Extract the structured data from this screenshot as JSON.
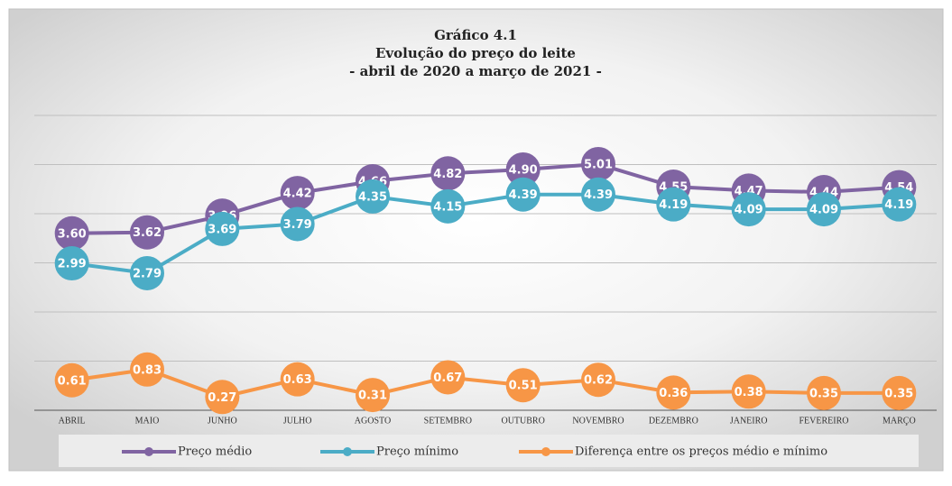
{
  "chart_data": {
    "type": "line",
    "title": [
      "Gráfico 4.1",
      "Evolução do preço do leite",
      "- abril de 2020 a março de 2021 -"
    ],
    "categories": [
      "ABRIL",
      "MAIO",
      "JUNHO",
      "JULHO",
      "AGOSTO",
      "SETEMBRO",
      "OUTUBRO",
      "NOVEMBRO",
      "DEZEMBRO",
      "JANEIRO",
      "FEVEREIRO",
      "MARÇO"
    ],
    "series": [
      {
        "name": "Preço médio",
        "color": "#8064a2",
        "values": [
          3.6,
          3.62,
          3.96,
          4.42,
          4.66,
          4.82,
          4.9,
          5.01,
          4.55,
          4.47,
          4.44,
          4.54
        ],
        "value_labels": [
          "3.60",
          "3.62",
          "3.96",
          "4.42",
          "4.66",
          "4.82",
          "4.90",
          "5.01",
          "4.55",
          "4.47",
          "4.44",
          "4.54"
        ]
      },
      {
        "name": "Preço mínimo",
        "color": "#4bacc6",
        "values": [
          2.99,
          2.79,
          3.69,
          3.79,
          4.35,
          4.15,
          4.39,
          4.39,
          4.19,
          4.09,
          4.09,
          4.19
        ],
        "value_labels": [
          "2.99",
          "2.79",
          "3.69",
          "3.79",
          "4.35",
          "4.15",
          "4.39",
          "4.39",
          "4.19",
          "4.09",
          "4.09",
          "4.19"
        ]
      },
      {
        "name": "Diferença entre os preços médio e mínimo",
        "color": "#f79646",
        "values": [
          0.61,
          0.83,
          0.27,
          0.63,
          0.31,
          0.67,
          0.51,
          0.62,
          0.36,
          0.38,
          0.35,
          0.35
        ],
        "value_labels": [
          "0.61",
          "0.83",
          "0.27",
          "0.63",
          "0.31",
          "0.67",
          "0.51",
          "0.62",
          "0.36",
          "0.38",
          "0.35",
          "0.35"
        ]
      }
    ],
    "ylim": [
      0,
      6
    ],
    "yticks": [
      0,
      1,
      2,
      3,
      4,
      5,
      6
    ],
    "grid": true,
    "legend": "bottom"
  }
}
